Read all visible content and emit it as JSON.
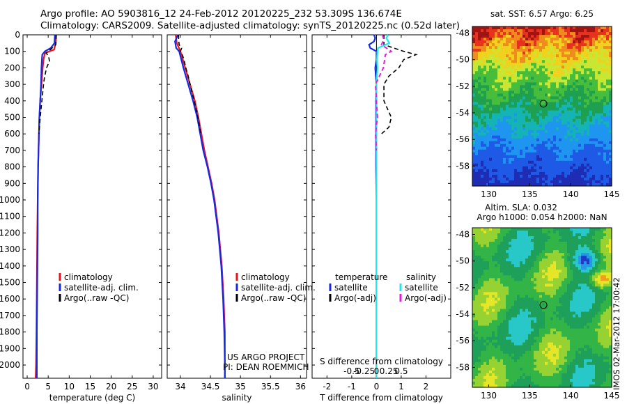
{
  "header": {
    "line1": "Argo profile: AO 5903816_12 24-Feb-2012 20120225_232 53.309S 136.674E",
    "line2": "Climatology: CARS2009. Satellite-adjusted climatology: synTS_20120225.nc (0.52d later)"
  },
  "watermark": "IMOS 02-Mar-2012 17:00:42",
  "colors": {
    "climatology": "#e8141b",
    "satellite": "#1428e6",
    "argo": "#000000",
    "salinity_satellite": "#22e6ee",
    "salinity_argo": "#e01ee0"
  },
  "chart_data": [
    {
      "type": "line",
      "name": "temperature",
      "xlabel": "temperature (deg C)",
      "ylabel": "",
      "xlim": [
        -1,
        32
      ],
      "ylim": [
        2080,
        0
      ],
      "xticks": [
        0,
        5,
        10,
        15,
        20,
        25,
        30
      ],
      "xtick_labels": [
        "0",
        "5",
        "10",
        "15",
        "20",
        "25",
        "30"
      ],
      "yticks": [
        0,
        100,
        200,
        300,
        400,
        500,
        600,
        700,
        800,
        900,
        1000,
        1100,
        1200,
        1300,
        1400,
        1500,
        1600,
        1700,
        1800,
        1900,
        2000
      ],
      "legend": [
        "climatology",
        "satellite-adj. clim.",
        "Argo(..raw -QC)"
      ],
      "series": [
        {
          "name": "climatology",
          "depth": [
            0,
            50,
            90,
            110,
            150,
            200,
            300,
            400,
            500,
            600,
            700,
            800,
            1000,
            1200,
            1500,
            1800,
            2000,
            2080
          ],
          "values": [
            6.9,
            6.8,
            6.4,
            4.2,
            3.9,
            3.7,
            3.4,
            3.1,
            2.9,
            2.8,
            2.7,
            2.6,
            2.5,
            2.4,
            2.3,
            2.2,
            2.1,
            2.0
          ]
        },
        {
          "name": "satellite-adj. clim.",
          "depth": [
            0,
            50,
            80,
            100,
            120,
            150,
            200,
            300,
            400,
            500,
            600,
            700,
            800,
            1000,
            1200,
            1500,
            1800,
            2000,
            2080
          ],
          "values": [
            6.6,
            6.5,
            5.6,
            4.2,
            3.6,
            3.5,
            3.4,
            3.3,
            3.1,
            2.9,
            2.8,
            2.7,
            2.6,
            2.5,
            2.5,
            2.4,
            2.3,
            2.3,
            2.3
          ]
        },
        {
          "name": "Argo(..raw -QC)",
          "depth": [
            0,
            30,
            60,
            90,
            110,
            130,
            160,
            200,
            260,
            300,
            400,
            500,
            600
          ],
          "values": [
            6.9,
            6.9,
            6.8,
            5.5,
            4.5,
            5.1,
            5.3,
            4.6,
            4.1,
            3.9,
            3.5,
            3.1,
            2.8
          ]
        }
      ]
    },
    {
      "type": "line",
      "name": "salinity",
      "xlabel": "salinity",
      "ylabel": "",
      "xlim": [
        33.78,
        36.1
      ],
      "ylim": [
        2080,
        0
      ],
      "xticks": [
        34,
        34.5,
        35,
        35.5,
        36
      ],
      "xtick_labels": [
        "34",
        "34.5",
        "35",
        "35.5",
        "36"
      ],
      "legend": [
        "climatology",
        "satellite-adj. clim.",
        "Argo(..raw -QC)"
      ],
      "annotation": [
        "US ARGO PROJECT",
        "PI: DEAN ROEMMICH"
      ],
      "series": [
        {
          "name": "climatology",
          "depth": [
            0,
            50,
            100,
            200,
            300,
            400,
            500,
            600,
            700,
            800,
            900,
            1000,
            1200,
            1400,
            1600,
            1800,
            2000,
            2080
          ],
          "values": [
            33.92,
            33.94,
            34.0,
            34.08,
            34.16,
            34.24,
            34.3,
            34.35,
            34.4,
            34.46,
            34.52,
            34.57,
            34.64,
            34.69,
            34.72,
            34.74,
            34.74,
            34.74
          ]
        },
        {
          "name": "satellite-adj. clim.",
          "depth": [
            0,
            40,
            80,
            100,
            200,
            300,
            400,
            500,
            600,
            700,
            800,
            900,
            1000,
            1200,
            1400,
            1600,
            1800,
            2000,
            2080
          ],
          "values": [
            33.96,
            33.91,
            33.93,
            33.98,
            34.05,
            34.13,
            34.21,
            34.28,
            34.33,
            34.38,
            34.45,
            34.51,
            34.56,
            34.63,
            34.68,
            34.71,
            34.73,
            34.74,
            34.74
          ]
        },
        {
          "name": "Argo(..raw -QC)",
          "depth": [
            0,
            30,
            60,
            80,
            100,
            120,
            150,
            200,
            250,
            300,
            400,
            500,
            600
          ],
          "values": [
            33.97,
            33.97,
            33.98,
            34.02,
            34.0,
            34.03,
            34.06,
            34.09,
            34.13,
            34.16,
            34.23,
            34.29,
            34.34
          ]
        }
      ]
    },
    {
      "type": "line",
      "name": "difference",
      "xlabel": "T difference from climatology",
      "xlabel_top": "S difference from climatology",
      "xlim": [
        -2.6,
        3.0
      ],
      "ylim": [
        2080,
        0
      ],
      "xticks": [
        -2,
        -1,
        0,
        1,
        2
      ],
      "xtick_labels": [
        "-2",
        "-1",
        "0",
        "1",
        "2"
      ],
      "s_ticks": [
        -0.5,
        -0.25,
        0,
        0.25,
        0.5
      ],
      "s_tick_labels": [
        "-0.5",
        "-0.25",
        "0",
        "0.25",
        "0.5"
      ],
      "legend_left_title": "temperature",
      "legend_right_title": "salinity",
      "legend": [
        "satellite",
        "Argo(-adj)",
        "satellite",
        "Argo(-adj)"
      ],
      "series": [
        {
          "name": "T satellite",
          "depth": [
            0,
            20,
            40,
            60,
            80,
            100,
            150,
            200,
            300,
            400,
            600,
            800,
            1000,
            1500,
            2080
          ],
          "values": [
            -0.1,
            -0.05,
            -0.1,
            -0.3,
            -0.25,
            0,
            0,
            -0.05,
            0,
            -0.02,
            -0.02,
            -0.02,
            0,
            0,
            0
          ]
        },
        {
          "name": "T Argo(-adj)",
          "depth": [
            0,
            30,
            60,
            100,
            120,
            150,
            200,
            250,
            300,
            400,
            500,
            560,
            600
          ],
          "values": [
            0.3,
            0.3,
            0.3,
            1.1,
            1.6,
            1.1,
            0.9,
            0.5,
            0.3,
            0.3,
            0.6,
            0.5,
            0.2
          ]
        },
        {
          "name": "S satellite",
          "depth": [
            0,
            20,
            50,
            80,
            100,
            150,
            200,
            300,
            400,
            600,
            800,
            1000,
            1500,
            2080
          ],
          "values": [
            0.23,
            0.2,
            0.26,
            0.03,
            0.02,
            0.01,
            0.02,
            0.0,
            0.0,
            0.0,
            0.0,
            0.0,
            0.0,
            0.0
          ]
        },
        {
          "name": "S Argo(-adj)",
          "depth": [
            0,
            30,
            60,
            100,
            120,
            200,
            300,
            400,
            500,
            600,
            700
          ],
          "values": [
            0.12,
            0.15,
            0.1,
            0.3,
            0.18,
            0.14,
            -0.02,
            0.0,
            0.02,
            -0.02,
            0.0
          ]
        }
      ]
    },
    {
      "type": "heatmap",
      "name": "sat-sst",
      "title": "sat. SST: 6.57 Argo: 6.25",
      "xlim": [
        128,
        145
      ],
      "ylim": [
        -59.5,
        -47.5
      ],
      "xticks": [
        130,
        135,
        140,
        145
      ],
      "xtick_labels": [
        "130",
        "135",
        "140",
        "145"
      ],
      "yticks": [
        -58,
        -56,
        -54,
        -52,
        -50,
        -48
      ],
      "ytick_labels": [
        "-58",
        "-56",
        "-54",
        "-52",
        "-50",
        "-48"
      ],
      "marker": [
        136.674,
        -53.309
      ]
    },
    {
      "type": "heatmap",
      "name": "altimetry-sla",
      "title": "Altim. SLA: 0.032",
      "subtitle": "Argo h1000: 0.054 h2000: NaN",
      "xlim": [
        128,
        145
      ],
      "ylim": [
        -59.5,
        -47.5
      ],
      "xticks": [
        130,
        135,
        140,
        145
      ],
      "xtick_labels": [
        "130",
        "135",
        "140",
        "145"
      ],
      "yticks": [
        -58,
        -56,
        -54,
        -52,
        -50,
        -48
      ],
      "ytick_labels": [
        "-58",
        "-56",
        "-54",
        "-52",
        "-50",
        "-48"
      ],
      "marker": [
        136.674,
        -53.309
      ]
    }
  ]
}
